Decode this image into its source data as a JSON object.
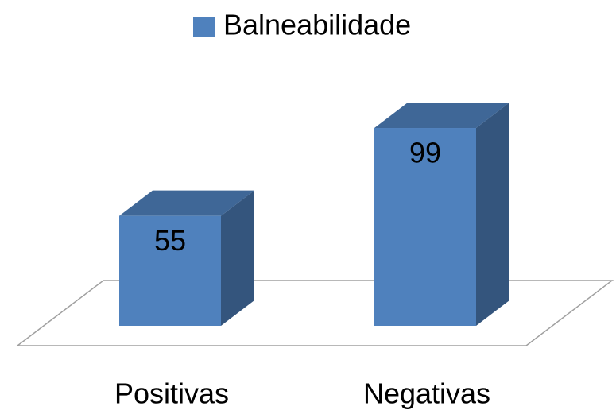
{
  "chart_data": {
    "type": "bar3d",
    "categories": [
      "Positivas",
      "Negativas"
    ],
    "series": [
      {
        "name": "Balneabilidade",
        "color": "#4f81bd",
        "values": [
          55,
          99
        ]
      }
    ],
    "legend": "top"
  }
}
